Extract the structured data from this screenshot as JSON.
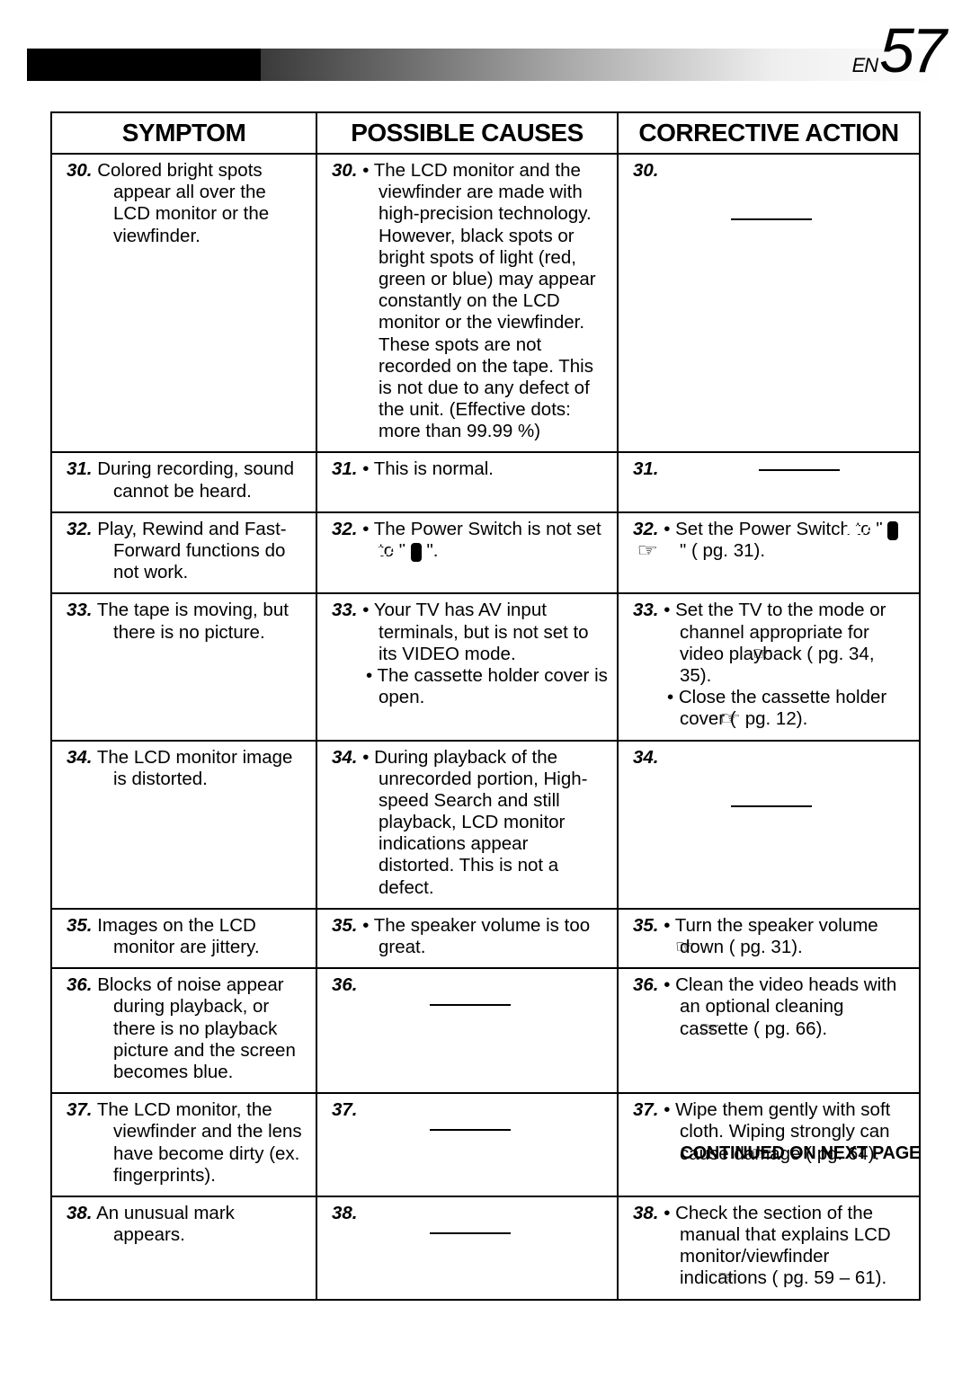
{
  "page": {
    "en_label": "EN",
    "number": "57"
  },
  "headers": {
    "c1": "SYMPTOM",
    "c2": "POSSIBLE CAUSES",
    "c3": "CORRECTIVE ACTION"
  },
  "rows": [
    {
      "n": "30.",
      "symptom": "Colored bright spots appear all over the LCD monitor or the viewfinder.",
      "cause": "• The LCD monitor and the viewfinder are made with high-precision technology. However, black spots or bright spots of light (red, green or blue) may appear constantly on the LCD monitor or the viewfinder. These spots are not recorded on the tape. This is not due to any defect of the unit. (Effective dots: more than 99.99 %)",
      "action_type": "dash"
    },
    {
      "n": "31.",
      "symptom": "During recording, sound cannot be heard.",
      "cause": "• This is normal.",
      "action_type": "dash_inline"
    },
    {
      "n": "32.",
      "symptom": "Play, Rewind and Fast-Forward functions do not work.",
      "cause_type": "play_notset",
      "action_type": "play_set"
    },
    {
      "n": "33.",
      "symptom": "The tape is moving, but there is no picture.",
      "cause_lines": [
        "• Your TV has AV input terminals, but is not set to its VIDEO mode.",
        "• The cassette holder cover is open."
      ],
      "action_lines": [
        "• Set the TV to the mode or channel appropriate for video playback (☞ pg. 34, 35).",
        "• Close the cassette holder cover (☞ pg. 12)."
      ]
    },
    {
      "n": "34.",
      "symptom": "The LCD monitor image is distorted.",
      "cause": "• During playback of the unrecorded portion, High-speed Search and still playback, LCD monitor indications appear distorted. This is not a defect.",
      "action_type": "dash"
    },
    {
      "n": "35.",
      "symptom": "Images on the LCD monitor are jittery.",
      "cause": "• The speaker volume is too great.",
      "action": "• Turn the speaker volume down (☞ pg. 31)."
    },
    {
      "n": "36.",
      "symptom": "Blocks of noise appear during playback, or there is no playback picture and the screen becomes blue.",
      "cause_type": "dash",
      "action": "• Clean the video heads with an optional cleaning cassette (☞ pg. 66)."
    },
    {
      "n": "37.",
      "symptom": "The LCD monitor, the viewfinder and the lens have become dirty (ex. fingerprints).",
      "cause_type": "dash",
      "action": "• Wipe them gently with soft cloth. Wiping strongly can cause damage (☞ pg. 64)."
    },
    {
      "n": "38.",
      "symptom": "An unusual mark appears.",
      "cause_type": "dash",
      "action": "• Check the section of the manual that explains LCD monitor/viewfinder indications (☞ pg. 59 – 61)."
    }
  ],
  "play_text": "PLAY",
  "cause_notset_pre": "• The Power Switch is not set to \" ",
  "cause_notset_post": " \".",
  "action_set_pre": "• Set the Power Switch to \" ",
  "action_set_post": " \" (☞ pg. 31).",
  "footer": "CONTINUED ON NEXT PAGE",
  "colors": {
    "border": "#000",
    "text": "#000"
  }
}
